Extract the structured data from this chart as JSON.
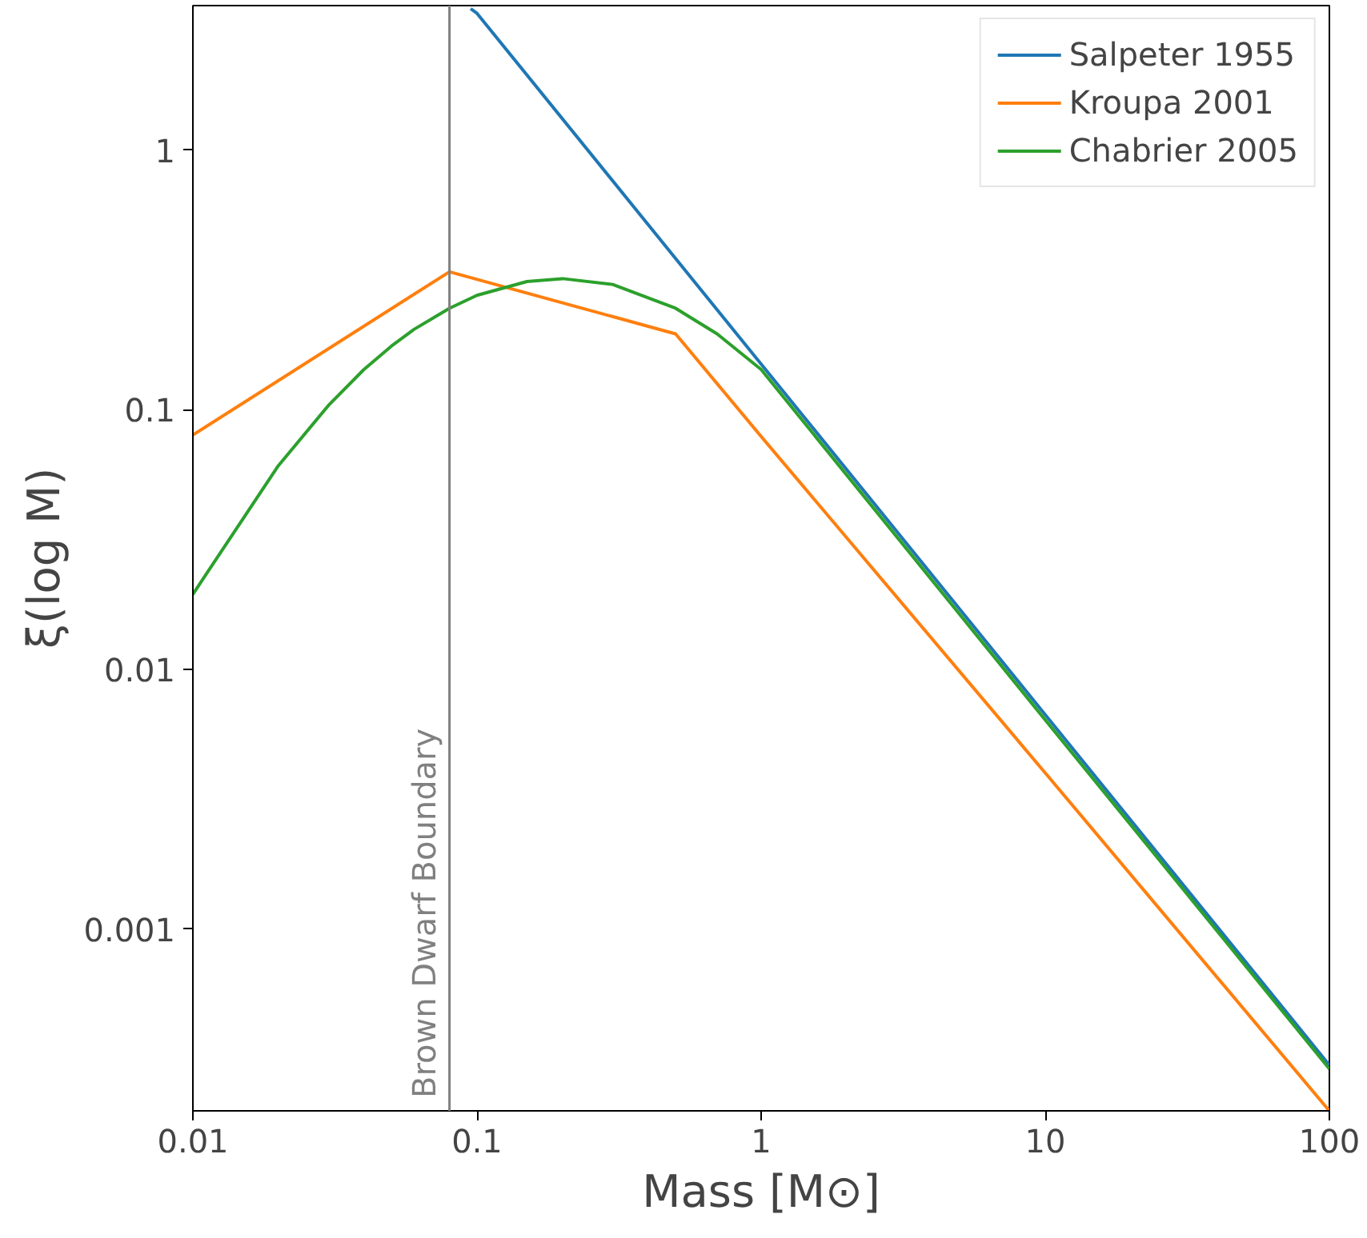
{
  "chart_data": {
    "type": "line",
    "xlabel": "Mass [M⊙]",
    "ylabel": "ξ(log M)",
    "log": "xy",
    "xlim": [
      0.01,
      100
    ],
    "ylim": [
      0.0002,
      3.6
    ],
    "xticks": [
      0.01,
      0.1,
      1,
      10,
      100
    ],
    "yticks": [
      0.001,
      0.01,
      0.1,
      1
    ],
    "grid": false,
    "legend": "top right",
    "ref_lines": [
      {
        "axis": "x",
        "value": 0.08,
        "label": "Brown Dwarf Boundary",
        "color": "#808080"
      }
    ],
    "series": [
      {
        "name": "Salpeter 1955",
        "color": "#1f77b4",
        "x": [
          0.095,
          0.1,
          1,
          10,
          100
        ],
        "values": [
          3.5,
          3.36,
          0.15,
          0.0067,
          0.0003
        ]
      },
      {
        "name": "Kroupa 2001",
        "color": "#ff7f0e",
        "x": [
          0.01,
          0.08,
          0.5,
          1,
          10,
          100
        ],
        "values": [
          0.08,
          0.34,
          0.196,
          0.079,
          0.004,
          0.0002
        ]
      },
      {
        "name": "Chabrier 2005",
        "color": "#2ca02c",
        "x": [
          0.01,
          0.02,
          0.03,
          0.04,
          0.05,
          0.06,
          0.08,
          0.1,
          0.15,
          0.2,
          0.3,
          0.5,
          0.7,
          1,
          10,
          100
        ],
        "values": [
          0.0195,
          0.061,
          0.104,
          0.143,
          0.176,
          0.204,
          0.246,
          0.276,
          0.312,
          0.32,
          0.304,
          0.246,
          0.196,
          0.143,
          0.0064,
          0.00029
        ]
      }
    ]
  }
}
